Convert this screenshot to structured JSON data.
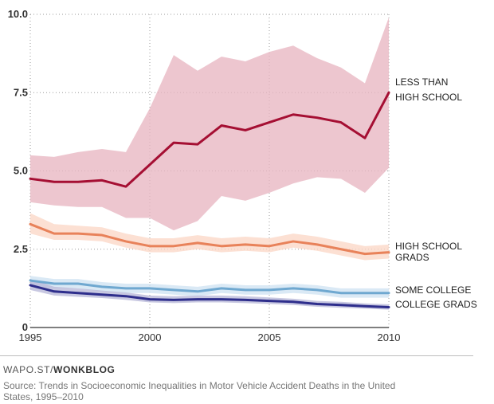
{
  "chart_data": {
    "type": "line",
    "title": "",
    "xlabel": "",
    "ylabel": "",
    "xlim": [
      1995,
      2010
    ],
    "ylim": [
      0,
      10
    ],
    "x_ticks": [
      1995,
      2000,
      2005,
      2010
    ],
    "x_tick_labels": [
      "1995",
      "2000",
      "2005",
      "2010"
    ],
    "y_ticks": [
      0,
      2.5,
      5,
      7.5,
      10
    ],
    "y_tick_labels": [
      "0",
      "2.5",
      "5.0",
      "7.5",
      "10.0"
    ],
    "x": [
      1995,
      1996,
      1997,
      1998,
      1999,
      2000,
      2001,
      2002,
      2003,
      2004,
      2005,
      2006,
      2007,
      2008,
      2009,
      2010
    ],
    "series": [
      {
        "name": "LESS THAN HIGH SCHOOL",
        "label_lines": [
          "LESS THAN",
          "HIGH SCHOOL"
        ],
        "color": "#a50f33",
        "band_color": "#e8b6c1",
        "values": [
          4.75,
          4.65,
          4.65,
          4.7,
          4.5,
          5.2,
          5.9,
          5.85,
          6.45,
          6.3,
          6.55,
          6.8,
          6.7,
          6.55,
          6.05,
          7.5
        ],
        "lower": [
          4.0,
          3.9,
          3.85,
          3.85,
          3.5,
          3.5,
          3.1,
          3.4,
          4.2,
          4.05,
          4.3,
          4.6,
          4.8,
          4.75,
          4.3,
          5.1
        ],
        "upper": [
          5.5,
          5.45,
          5.6,
          5.7,
          5.6,
          7.0,
          8.7,
          8.2,
          8.65,
          8.5,
          8.8,
          9.0,
          8.6,
          8.3,
          7.8,
          9.9
        ]
      },
      {
        "name": "HIGH SCHOOL GRADS",
        "label_lines": [
          "HIGH SCHOOL",
          "GRADS"
        ],
        "color": "#e8825a",
        "band_color": "#fbd7c7",
        "values": [
          3.3,
          3.0,
          3.0,
          2.95,
          2.75,
          2.6,
          2.6,
          2.7,
          2.6,
          2.65,
          2.6,
          2.75,
          2.65,
          2.5,
          2.35,
          2.4
        ],
        "lower": [
          3.0,
          2.8,
          2.8,
          2.75,
          2.55,
          2.4,
          2.4,
          2.5,
          2.4,
          2.45,
          2.4,
          2.55,
          2.45,
          2.3,
          2.15,
          2.2
        ],
        "upper": [
          3.65,
          3.3,
          3.25,
          3.2,
          3.0,
          2.85,
          2.85,
          2.95,
          2.85,
          2.9,
          2.85,
          3.0,
          2.9,
          2.75,
          2.6,
          2.65
        ]
      },
      {
        "name": "SOME COLLEGE",
        "label_lines": [
          "SOME COLLEGE"
        ],
        "color": "#6fa8d0",
        "band_color": "#cfe3f2",
        "values": [
          1.5,
          1.4,
          1.4,
          1.3,
          1.25,
          1.25,
          1.2,
          1.15,
          1.25,
          1.2,
          1.2,
          1.25,
          1.2,
          1.1,
          1.1,
          1.1
        ],
        "lower": [
          1.35,
          1.25,
          1.25,
          1.15,
          1.1,
          1.1,
          1.05,
          1.0,
          1.1,
          1.05,
          1.05,
          1.1,
          1.05,
          0.95,
          0.95,
          0.95
        ],
        "upper": [
          1.65,
          1.55,
          1.55,
          1.45,
          1.4,
          1.4,
          1.35,
          1.3,
          1.4,
          1.35,
          1.35,
          1.4,
          1.35,
          1.25,
          1.25,
          1.25
        ]
      },
      {
        "name": "COLLEGE GRADS",
        "label_lines": [
          "COLLEGE GRADS"
        ],
        "color": "#2e2e8c",
        "band_color": "#b8b8d8",
        "values": [
          1.35,
          1.15,
          1.1,
          1.05,
          1.0,
          0.9,
          0.88,
          0.9,
          0.9,
          0.88,
          0.85,
          0.82,
          0.75,
          0.72,
          0.68,
          0.65
        ],
        "lower": [
          1.2,
          1.02,
          0.98,
          0.94,
          0.88,
          0.8,
          0.78,
          0.8,
          0.8,
          0.78,
          0.75,
          0.72,
          0.66,
          0.63,
          0.6,
          0.57
        ],
        "upper": [
          1.55,
          1.3,
          1.25,
          1.18,
          1.12,
          1.02,
          1.0,
          1.02,
          1.02,
          1.0,
          0.96,
          0.92,
          0.85,
          0.82,
          0.77,
          0.74
        ]
      }
    ]
  },
  "footer": {
    "credit_prefix": "WAPO.ST/",
    "credit_bold": "WONKBLOG",
    "source": "Source: Trends in Socioeconomic Inequalities in Motor Vehicle Accident Deaths in the United States, 1995–2010"
  }
}
